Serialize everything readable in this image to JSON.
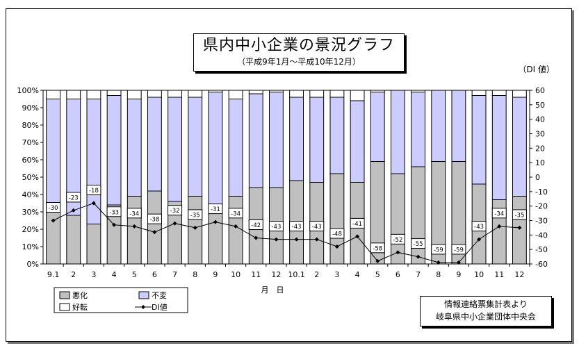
{
  "chart_data": {
    "type": "bar",
    "title": "県内中小企業の景況グラフ",
    "subtitle": "（平成9年1月～平成10年12月）",
    "right_axis_label": "（DI 値）",
    "xlabel": "月　日",
    "categories": [
      "9.1",
      "2",
      "3",
      "4",
      "5",
      "6",
      "7",
      "8",
      "9",
      "10",
      "11",
      "12",
      "10.1",
      "2",
      "3",
      "4",
      "5",
      "6",
      "7",
      "8",
      "9",
      "10",
      "11",
      "12"
    ],
    "series": [
      {
        "name": "悪化",
        "values": [
          35,
          28,
          23,
          34,
          39,
          42,
          36,
          39,
          33,
          39,
          44,
          44,
          48,
          47,
          52,
          47,
          59,
          52,
          56,
          59,
          59,
          46,
          37,
          39
        ]
      },
      {
        "name": "不変",
        "values": [
          60,
          67,
          72,
          63,
          56,
          54,
          60,
          57,
          66,
          56,
          54,
          55,
          48,
          49,
          44,
          47,
          40,
          48,
          43,
          41,
          41,
          51,
          60,
          57
        ]
      },
      {
        "name": "好転",
        "values": [
          5,
          5,
          5,
          3,
          5,
          4,
          4,
          4,
          1,
          5,
          2,
          1,
          4,
          4,
          4,
          6,
          1,
          0,
          1,
          0,
          0,
          3,
          3,
          4
        ]
      },
      {
        "name": "DI値",
        "values": [
          -30,
          -23,
          -18,
          -33,
          -34,
          -38,
          -32,
          -35,
          -31,
          -34,
          -42,
          -43,
          -43,
          -43,
          -48,
          -41,
          -58,
          -52,
          -55,
          -59,
          -59,
          -43,
          -34,
          -35
        ]
      }
    ],
    "left_ticks": [
      "0%",
      "10%",
      "20%",
      "30%",
      "40%",
      "50%",
      "60%",
      "70%",
      "80%",
      "90%",
      "100%"
    ],
    "right_ticks": [
      "-60",
      "-50",
      "-40",
      "-30",
      "-20",
      "-10",
      "0",
      "10",
      "20",
      "30",
      "40",
      "50",
      "60"
    ],
    "ylim_left": [
      0,
      100
    ],
    "ylim_right": [
      -60,
      60
    ],
    "colors": {
      "悪化": "#c0c0c0",
      "不変": "#ccccff",
      "好転": "#ffffff",
      "DI値": "#000000"
    },
    "legend": {
      "items": [
        "悪化",
        "不変",
        "好転",
        "DI値"
      ]
    }
  },
  "source_lines": [
    "情報連絡票集計表より",
    "岐阜県中小企業団体中央会"
  ]
}
